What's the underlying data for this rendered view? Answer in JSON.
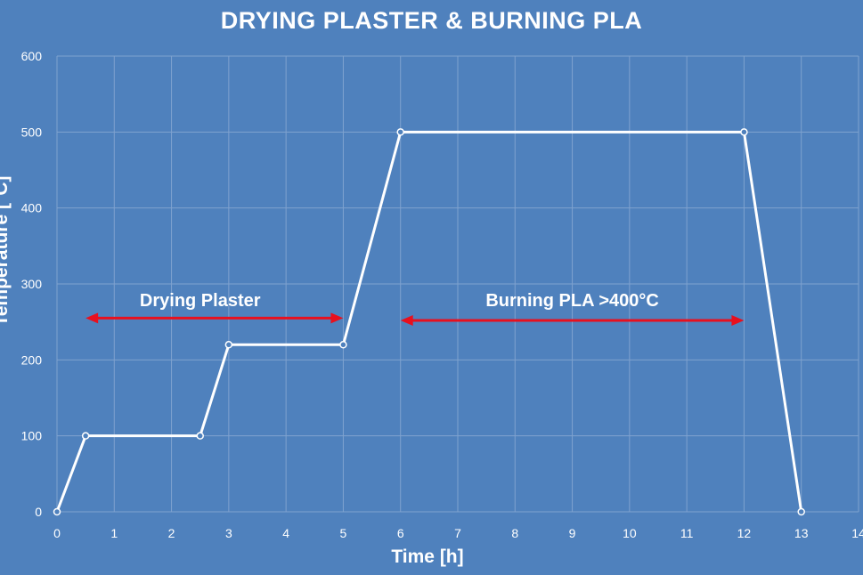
{
  "chart_data": {
    "type": "line",
    "title": "DRYING PLASTER & BURNING PLA",
    "xlabel": "Time [h]",
    "ylabel": "Temperature [°C]",
    "xlim": [
      0,
      14
    ],
    "ylim": [
      0,
      600
    ],
    "x_ticks": [
      0,
      1,
      2,
      3,
      4,
      5,
      6,
      7,
      8,
      9,
      10,
      11,
      12,
      13,
      14
    ],
    "y_ticks": [
      0,
      100,
      200,
      300,
      400,
      500,
      600
    ],
    "grid": true,
    "series": [
      {
        "x": [
          0,
          0.5,
          2.5,
          3,
          5,
          6,
          12,
          13
        ],
        "y": [
          0,
          100,
          100,
          220,
          220,
          500,
          500,
          0
        ],
        "color": "#ffffff"
      }
    ],
    "annotations": [
      {
        "text": "Drying Plaster",
        "x": 2.5,
        "y": 285,
        "arrow_from": 0.5,
        "arrow_to": 5,
        "arrow_y": 255
      },
      {
        "text": "Burning PLA >400°C",
        "x": 9,
        "y": 285,
        "arrow_from": 6,
        "arrow_to": 12,
        "arrow_y": 252
      }
    ],
    "colors": {
      "background": "#4f81bd",
      "line": "#ffffff",
      "arrow": "#e8101e",
      "grid": "#7fa2cf"
    }
  }
}
